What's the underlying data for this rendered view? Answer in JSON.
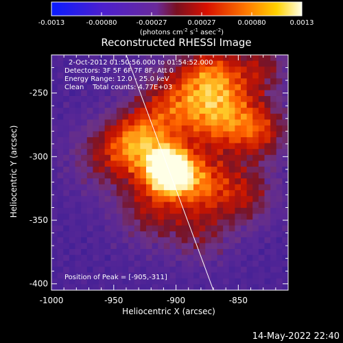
{
  "colorbar": {
    "ticks": [
      "-0.0013",
      "-0.00080",
      "-0.00027",
      "0.00027",
      "0.00080",
      "0.0013"
    ],
    "unit_text": "(photons cm",
    "unit_sup1": "-2",
    "unit_mid": " s",
    "unit_sup2": "-1",
    "unit_end": " asec",
    "unit_sup3": "-2",
    "unit_close": ")"
  },
  "annotation": {
    "time_range": "2-Oct-2012 01:50:56.000 to 01:54:52.000",
    "detectors": "Detectors: 3F 5F 6F 7F 8F, Att 0",
    "energy": "Energy Range: 12.0 - 25.0 keV",
    "clean_total": "Clean    Total counts: 4.77E+03",
    "peak": "Position of Peak = [-905,-311]"
  },
  "footer": {
    "timestamp": "14-May-2022 22:40"
  },
  "colors": {
    "background": "#000000",
    "limb_line": "#ffffff"
  },
  "chart_data": {
    "type": "heatmap",
    "title": "Reconstructed RHESSI Image",
    "xlabel": "Heliocentric X (arcsec)",
    "ylabel": "Heliocentric Y (arcsec)",
    "xlim": [
      -1000,
      -810
    ],
    "ylim": [
      -405,
      -220
    ],
    "xticks": [
      -1000,
      -950,
      -900,
      -850
    ],
    "yticks": [
      -400,
      -350,
      -300,
      -250
    ],
    "xtick_labels": [
      "-1000",
      "-950",
      "-900",
      "-850"
    ],
    "ytick_labels": [
      "-400",
      "-350",
      "-300",
      "-250"
    ],
    "colorbar_range": [
      -0.0013,
      0.0013
    ],
    "colormap": "blue-purple-red-yellow-white",
    "peak": [
      -905,
      -311
    ],
    "limb_line": [
      [
        -940,
        -220
      ],
      [
        -870,
        -405
      ]
    ],
    "grid": false
  }
}
